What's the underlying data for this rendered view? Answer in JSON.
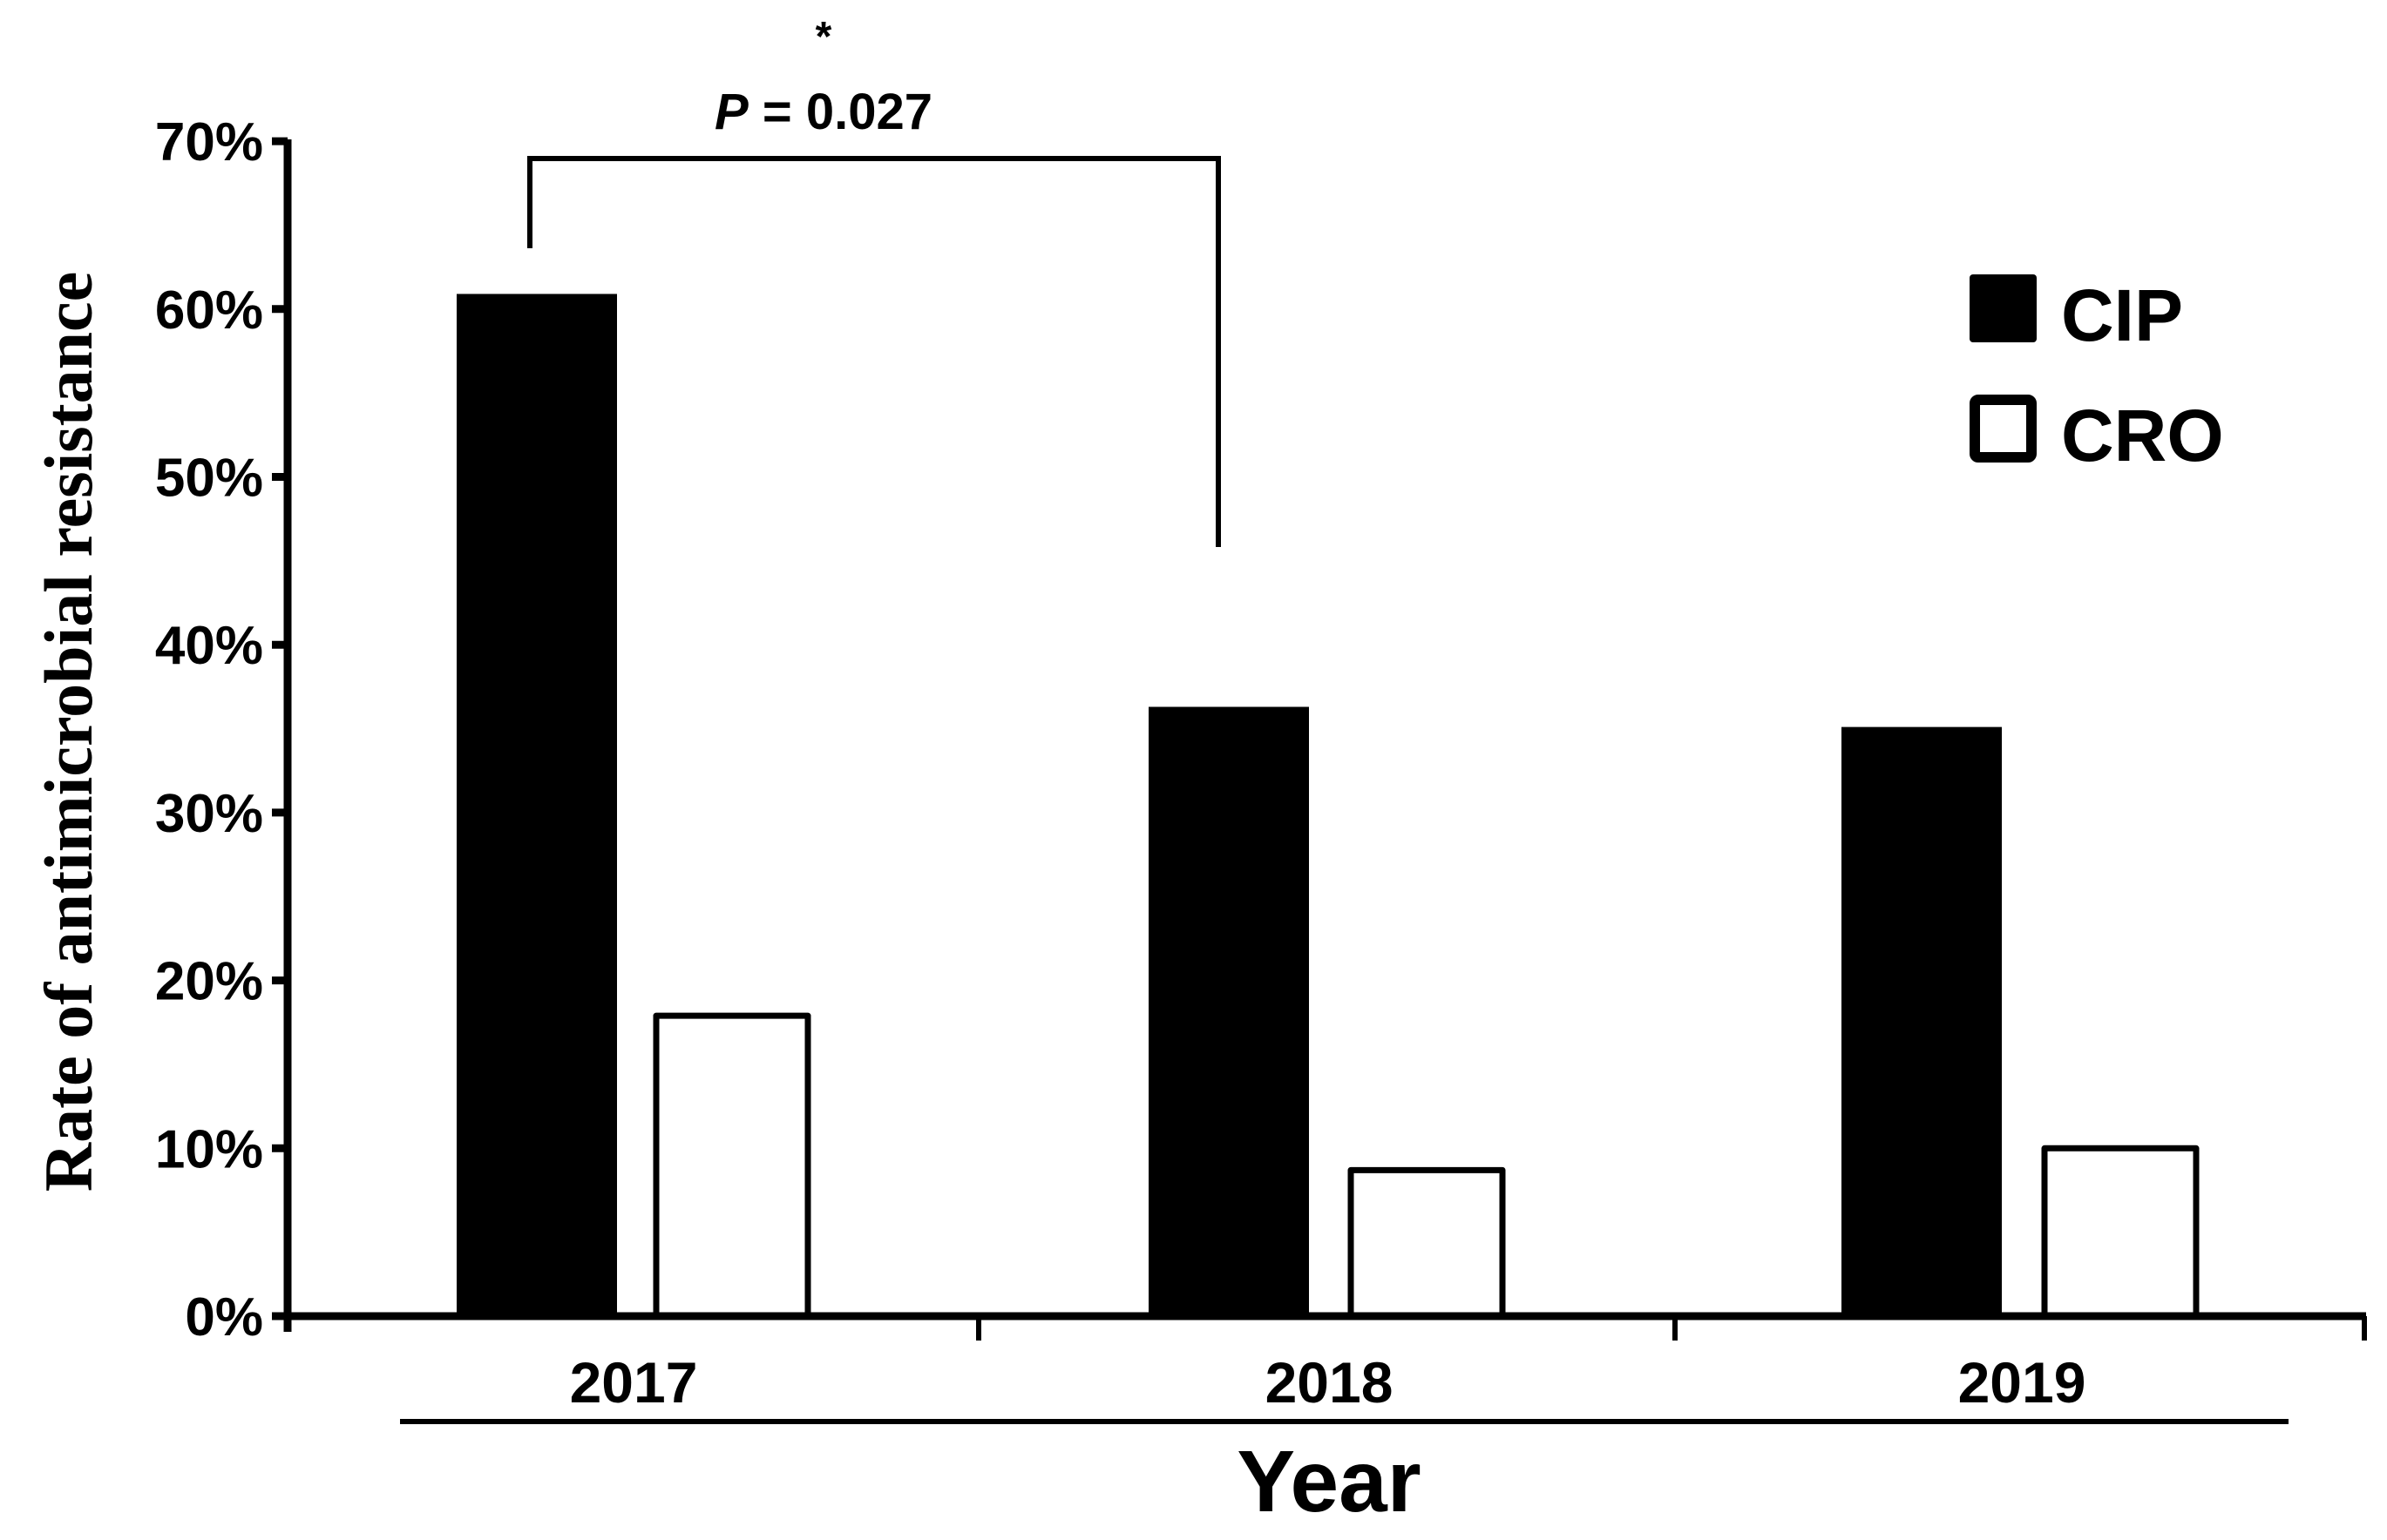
{
  "chart_data": {
    "type": "bar",
    "title": "",
    "xlabel": "Year",
    "ylabel": "Rate of antimicrobial resistance",
    "categories": [
      "2017",
      "2018",
      "2019"
    ],
    "series": [
      {
        "name": "CIP",
        "fill": "#000000",
        "values": [
          60.9,
          36.3,
          35.1
        ]
      },
      {
        "name": "CRO",
        "fill": "#ffffff",
        "values": [
          17.9,
          8.7,
          10.0
        ]
      }
    ],
    "ylim": [
      0,
      70
    ],
    "yticks": [
      "0%",
      "10%",
      "20%",
      "30%",
      "40%",
      "50%",
      "60%",
      "70%"
    ],
    "grid": false,
    "legend_position": "upper right",
    "annotations": [
      {
        "type": "significance-bracket",
        "from": "2017 CIP",
        "to": "2018 CIP",
        "star": "*",
        "text_italic": "P",
        "text_rest": " = 0.027"
      }
    ]
  },
  "labels": {
    "star": "*",
    "p_italic": "P",
    "p_rest": " = 0.027"
  }
}
